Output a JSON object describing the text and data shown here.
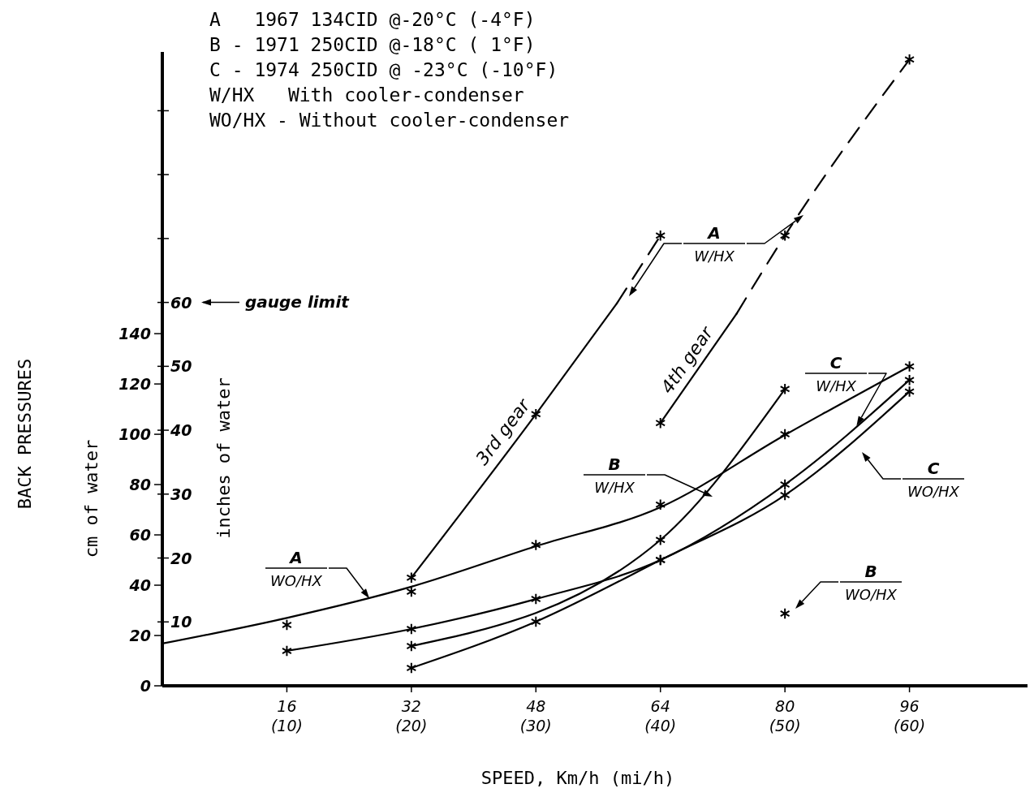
{
  "chart_data": {
    "type": "line",
    "title": "BACK PRESSURES",
    "xlabel": "SPEED, Km/h (mi/h)",
    "ylabel": "cm of water",
    "y2label": "inches of water",
    "xlim": [
      0,
      112
    ],
    "xticks": [
      16,
      32,
      48,
      64,
      80,
      96
    ],
    "x2lim": [
      0,
      70
    ],
    "x2ticks": [
      {
        "value": 10,
        "label": "(10)"
      },
      {
        "value": 20,
        "label": "(20)"
      },
      {
        "value": 30,
        "label": "(30)"
      },
      {
        "value": 40,
        "label": "(40)"
      },
      {
        "value": 50,
        "label": "(50)"
      },
      {
        "value": 60,
        "label": "(60)"
      }
    ],
    "ylim": [
      0,
      252
    ],
    "yticks": [
      0,
      20,
      40,
      60,
      80,
      100,
      120,
      140
    ],
    "y2lim": [
      0,
      99.2
    ],
    "y2ticks": [
      10,
      20,
      30,
      40,
      50,
      60,
      {
        "value": 70,
        "label": null
      },
      {
        "value": 80,
        "label": null
      },
      {
        "value": 90,
        "label": null
      }
    ],
    "ref_lines": [
      {
        "axis": "y2",
        "value": 60,
        "label": "gauge limit"
      }
    ],
    "annotations": [
      "A   1967 134CID @-20°C (-4°F)",
      "B - 1971 250CID @-18°C ( 1°F)",
      "C - 1974 250CID @ -23°C (-10°F)",
      "W/HX   With cooler-condenser",
      "WO/HX - Without cooler-condenser",
      {
        "text": "A\nWO/HX",
        "x": 26.6,
        "y": 34.8
      },
      "A\nW/HX",
      "B\nW/HX",
      {
        "text": "C\nW/HX",
        "x": 89.2,
        "y": 103.3
      },
      "C\nWO/HX",
      "B\nWO/HX"
    ],
    "series": [
      {
        "color": "#000000",
        "marker": "none",
        "x": [
          0,
          16,
          32,
          48,
          64,
          80,
          96
        ],
        "values": [
          16.8,
          27,
          39.4,
          55.5,
          71,
          99.7,
          127
        ]
      },
      {
        "type": "scatter",
        "color": "#000000",
        "marker": "cross",
        "x": [
          16,
          32,
          48,
          64,
          80,
          96
        ],
        "values": [
          24.2,
          37.4,
          56,
          72,
          100,
          127
        ]
      },
      {
        "name": "3rd gear",
        "color": "#000000",
        "marker": "none",
        "x": [
          32,
          48,
          58.4
        ],
        "values": [
          43,
          108,
          152
        ]
      },
      {
        "color": "#000000",
        "marker": "none",
        "line_style": "dashed",
        "x": [
          58.4,
          64
        ],
        "values": [
          152,
          179
        ]
      },
      {
        "name": "4th gear",
        "color": "#000000",
        "marker": "none",
        "x": [
          64,
          73.8
        ],
        "values": [
          104.5,
          148
        ]
      },
      {
        "color": "#000000",
        "marker": "none",
        "line_style": "dashed",
        "x": [
          73.8,
          80,
          96
        ],
        "values": [
          148,
          179,
          249
        ]
      },
      {
        "type": "scatter",
        "color": "#000000",
        "marker": "cross",
        "x": [
          32,
          48,
          64,
          64,
          80,
          96
        ],
        "values": [
          43,
          108,
          179,
          104.5,
          179,
          249
        ]
      },
      {
        "color": "#000000",
        "marker": "cross",
        "x": [
          32,
          64,
          80
        ],
        "values": [
          15.8,
          58,
          118
        ]
      },
      {
        "color": "#000000",
        "marker": "cross",
        "x": [
          16,
          32,
          48,
          64,
          80,
          96
        ],
        "values": [
          13.9,
          22.6,
          34.5,
          50,
          80,
          121.6
        ]
      },
      {
        "color": "#000000",
        "marker": "cross",
        "x": [
          32,
          48,
          64,
          80,
          96
        ],
        "values": [
          7.1,
          25.5,
          50,
          75.8,
          117
        ]
      },
      {
        "type": "scatter",
        "color": "#000000",
        "marker": "cross",
        "x": [
          80
        ],
        "values": [
          28.7
        ]
      }
    ]
  }
}
